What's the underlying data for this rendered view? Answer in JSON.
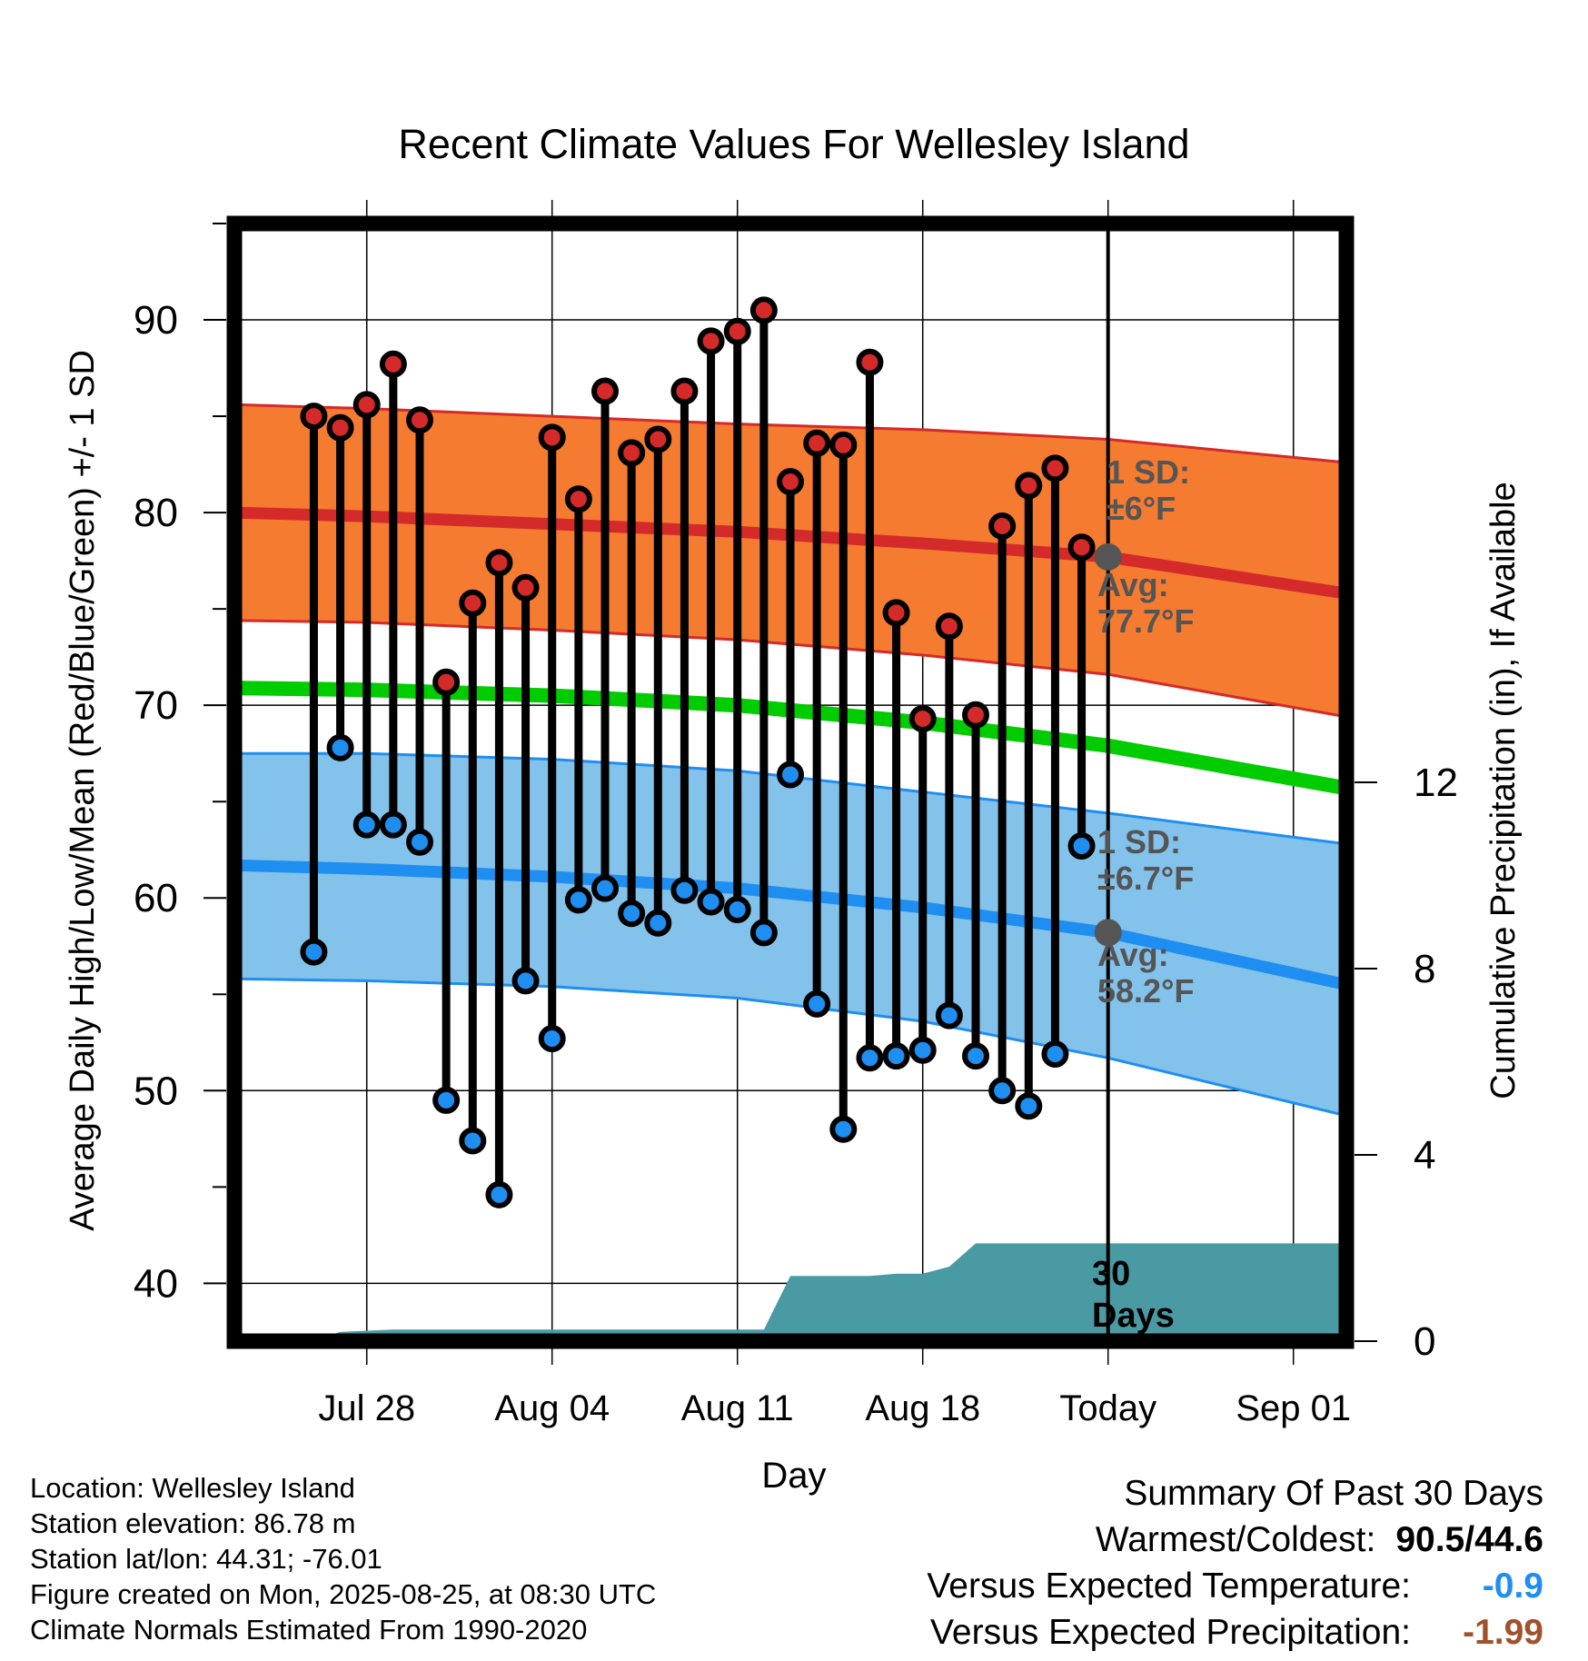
{
  "chart_data": {
    "type": "line",
    "title": "Recent Climate Values For Wellesley Island",
    "xlabel": "Day",
    "ylabel": "Average Daily High/Low/Mean (Red/Blue/Green) +/- 1 SD",
    "ylabel_right": "Cumulative Precipitation (in), If Available",
    "ylim": [
      37,
      95
    ],
    "ylim_right": [
      0,
      24
    ],
    "yticks": [
      40,
      50,
      60,
      70,
      80,
      90
    ],
    "yticks_right": [
      0,
      4,
      8,
      12
    ],
    "xlim": [
      "2025-07-23",
      "2025-09-03"
    ],
    "xticks": [
      {
        "date": "2025-07-28",
        "label": "Jul 28"
      },
      {
        "date": "2025-08-04",
        "label": "Aug 04"
      },
      {
        "date": "2025-08-11",
        "label": "Aug 11"
      },
      {
        "date": "2025-08-18",
        "label": "Aug 18"
      },
      {
        "date": "2025-08-25",
        "label": "Today"
      },
      {
        "date": "2025-09-01",
        "label": "Sep 01"
      }
    ],
    "grid": true,
    "today": "2025-08-25",
    "colors": {
      "high_band": "#f47b30",
      "high_line": "#d42a2a",
      "low_band": "#83c2ea",
      "low_line": "#1f8ef1",
      "mean_line": "#00cc00",
      "precip_fill": "#4a9aa3",
      "high_dot": "#d42a2a",
      "low_dot": "#1f8ef1",
      "annotation": "#555555",
      "departure_temp": "#1f8ef1",
      "departure_precip": "#a0522d"
    },
    "normals": {
      "x": [
        "2025-07-23",
        "2025-07-28",
        "2025-08-04",
        "2025-08-11",
        "2025-08-18",
        "2025-08-25",
        "2025-09-03"
      ],
      "high": [
        80.0,
        79.8,
        79.4,
        79.0,
        78.4,
        77.7,
        75.8
      ],
      "high_sd_upper": [
        85.6,
        85.4,
        85.0,
        84.6,
        84.3,
        83.8,
        82.6
      ],
      "high_sd_lower": [
        74.4,
        74.3,
        73.9,
        73.4,
        72.6,
        71.6,
        69.4
      ],
      "mean": [
        70.9,
        70.8,
        70.5,
        70.0,
        69.1,
        67.9,
        65.7
      ],
      "low": [
        61.7,
        61.5,
        61.1,
        60.5,
        59.5,
        58.2,
        55.5
      ],
      "low_sd_upper": [
        67.5,
        67.5,
        67.2,
        66.6,
        65.5,
        64.4,
        62.8
      ],
      "low_sd_lower": [
        55.8,
        55.7,
        55.4,
        54.8,
        53.6,
        51.7,
        48.7
      ]
    },
    "series": [
      {
        "name": "High",
        "x": [
          "2025-07-26",
          "2025-07-27",
          "2025-07-28",
          "2025-07-29",
          "2025-07-30",
          "2025-07-31",
          "2025-08-01",
          "2025-08-02",
          "2025-08-03",
          "2025-08-04",
          "2025-08-05",
          "2025-08-06",
          "2025-08-07",
          "2025-08-08",
          "2025-08-09",
          "2025-08-10",
          "2025-08-11",
          "2025-08-12",
          "2025-08-13",
          "2025-08-14",
          "2025-08-15",
          "2025-08-16",
          "2025-08-17",
          "2025-08-18",
          "2025-08-19",
          "2025-08-20",
          "2025-08-21",
          "2025-08-22",
          "2025-08-23",
          "2025-08-24"
        ],
        "values": [
          85.0,
          84.4,
          85.6,
          87.7,
          84.8,
          71.2,
          75.3,
          77.4,
          76.1,
          83.9,
          80.7,
          86.3,
          83.1,
          83.8,
          86.3,
          88.9,
          89.4,
          90.5,
          81.6,
          83.6,
          83.5,
          87.8,
          74.8,
          69.3,
          74.1,
          69.5,
          79.3,
          81.4,
          82.3,
          78.2
        ]
      },
      {
        "name": "Low",
        "x": [
          "2025-07-26",
          "2025-07-27",
          "2025-07-28",
          "2025-07-29",
          "2025-07-30",
          "2025-07-31",
          "2025-08-01",
          "2025-08-02",
          "2025-08-03",
          "2025-08-04",
          "2025-08-05",
          "2025-08-06",
          "2025-08-07",
          "2025-08-08",
          "2025-08-09",
          "2025-08-10",
          "2025-08-11",
          "2025-08-12",
          "2025-08-13",
          "2025-08-14",
          "2025-08-15",
          "2025-08-16",
          "2025-08-17",
          "2025-08-18",
          "2025-08-19",
          "2025-08-20",
          "2025-08-21",
          "2025-08-22",
          "2025-08-23",
          "2025-08-24"
        ],
        "values": [
          57.2,
          67.8,
          63.8,
          63.8,
          62.9,
          49.5,
          47.4,
          44.6,
          55.7,
          52.7,
          59.9,
          60.5,
          59.2,
          58.7,
          60.4,
          59.8,
          59.4,
          58.2,
          66.4,
          54.5,
          48.0,
          51.7,
          51.8,
          52.1,
          53.9,
          51.8,
          50.0,
          49.2,
          51.9,
          62.7
        ]
      }
    ],
    "precipitation": {
      "x": [
        "2025-07-23",
        "2025-07-26",
        "2025-07-27",
        "2025-07-29",
        "2025-08-12",
        "2025-08-13",
        "2025-08-16",
        "2025-08-17",
        "2025-08-18",
        "2025-08-19",
        "2025-08-20",
        "2025-08-25",
        "2025-09-03"
      ],
      "values": [
        0,
        0,
        0.2,
        0.25,
        0.25,
        1.4,
        1.4,
        1.45,
        1.45,
        1.6,
        2.1,
        2.1,
        2.1
      ]
    },
    "annotations": {
      "high_sd_label": [
        "1 SD:",
        "±6°F"
      ],
      "high_avg_label": [
        "Avg:",
        "77.7°F"
      ],
      "low_sd_label": [
        "1 SD:",
        "±6.7°F"
      ],
      "low_avg_label": [
        "Avg:",
        "58.2°F"
      ],
      "window_label": [
        "30",
        "Days"
      ]
    }
  },
  "footer": {
    "location": "Location: Wellesley Island",
    "elevation": "Station elevation: 86.78 m",
    "latlon": "Station lat/lon: 44.31; -76.01",
    "created": "Figure created on Mon, 2025-08-25, at 08:30 UTC",
    "normals": "Climate Normals Estimated From 1990-2020"
  },
  "summary": {
    "title": "Summary Of Past 30 Days",
    "warmest_label": "Warmest/Coldest:",
    "warmest_value": "90.5/44.6",
    "temp_label": "Versus Expected Temperature:",
    "temp_value": "-0.9",
    "precip_label": "Versus Expected Precipitation:",
    "precip_value": "-1.99"
  }
}
